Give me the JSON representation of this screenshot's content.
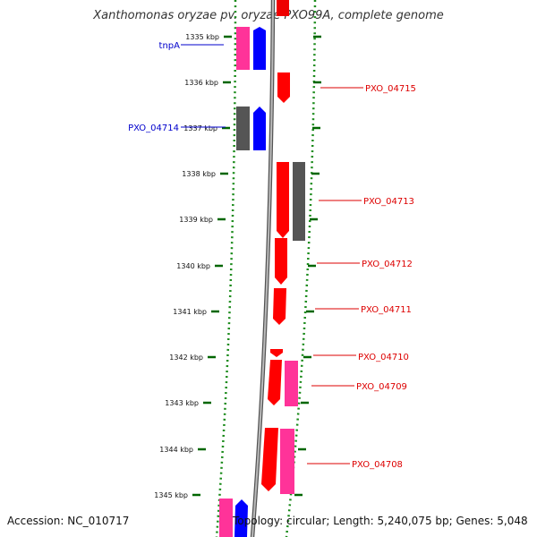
{
  "title": "Xanthomonas oryzae pv. oryzae PXO99A, complete genome",
  "footer": {
    "accession": "Accession: NC_010717",
    "topology": "Topology: circular; Length: 5,240,075 bp; Genes: 5,048"
  },
  "colors": {
    "minus_label": "#0000cc",
    "plus_label": "#dd0000",
    "tick_green": "#006600",
    "backbone": "#888888"
  },
  "ticks": [
    "1335 kbp",
    "1336 kbp",
    "1337 kbp",
    "1338 kbp",
    "1339 kbp",
    "1340 kbp",
    "1341 kbp",
    "1342 kbp",
    "1343 kbp",
    "1344 kbp",
    "1345 kbp"
  ],
  "genes": [
    {
      "label": "tnpA",
      "color": "blue"
    },
    {
      "label": "PXO_04714",
      "color": "blue"
    },
    {
      "label": "PXO_04715",
      "color": "red"
    },
    {
      "label": "PXO_04713",
      "color": "red"
    },
    {
      "label": "PXO_04712",
      "color": "red"
    },
    {
      "label": "PXO_04711",
      "color": "red"
    },
    {
      "label": "PXO_04710",
      "color": "red"
    },
    {
      "label": "PXO_04709",
      "color": "red"
    },
    {
      "label": "PXO_04708",
      "color": "red"
    }
  ]
}
